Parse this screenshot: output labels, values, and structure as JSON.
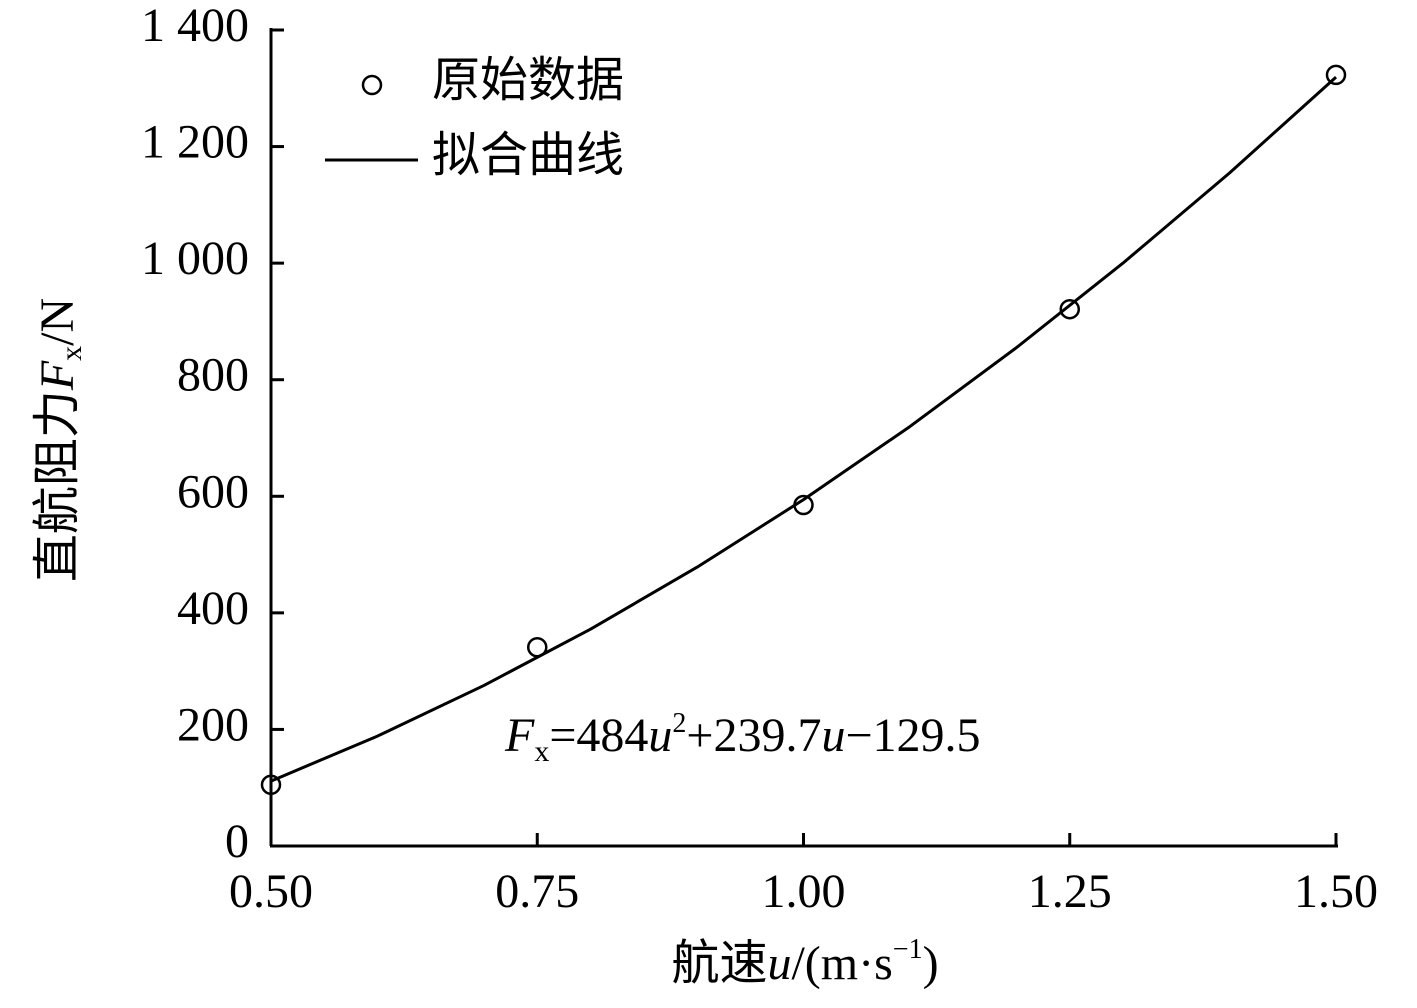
{
  "chart_data": {
    "type": "scatter-fit",
    "xlabel": [
      "航速",
      "u",
      "/(m·s",
      "−1",
      ")"
    ],
    "ylabel": [
      "直航阻力",
      "F",
      "x",
      "/N"
    ],
    "annotation": [
      "F",
      "x",
      "=484",
      "u",
      "2",
      "+239.7",
      "u",
      "−129.5"
    ],
    "xlim": [
      0.5,
      1.5
    ],
    "xticks": [
      {
        "value": 0.5,
        "label": "0.50"
      },
      {
        "value": 0.75,
        "label": "0.75"
      },
      {
        "value": 1.0,
        "label": "1.00"
      },
      {
        "value": 1.25,
        "label": "1.25"
      },
      {
        "value": 1.5,
        "label": "1.50"
      }
    ],
    "ylim": [
      0,
      1400
    ],
    "yticks": [
      0,
      200,
      400,
      600,
      800,
      {
        "value": 1000,
        "label": "1 000"
      },
      {
        "value": 1200,
        "label": "1 200"
      },
      {
        "value": 1400,
        "label": "1 400"
      }
    ],
    "legend": "upper-left",
    "series": [
      {
        "name": "原始数据",
        "kind": "points",
        "color": "#000000",
        "x": [
          0.5,
          0.75,
          1.0,
          1.25,
          1.5
        ],
        "values": [
          105,
          341,
          585,
          921,
          1323
        ]
      },
      {
        "name": "拟合曲线",
        "kind": "line",
        "color": "#000000",
        "x": [
          0.5,
          0.6,
          0.7,
          0.8,
          0.9,
          1.0,
          1.1,
          1.2,
          1.3,
          1.4,
          1.5
        ],
        "values": [
          111.4,
          188.6,
          275.5,
          372.0,
          478.3,
          594.2,
          719.8,
          855.1,
          1000.1,
          1154.7,
          1319.1
        ]
      }
    ]
  }
}
